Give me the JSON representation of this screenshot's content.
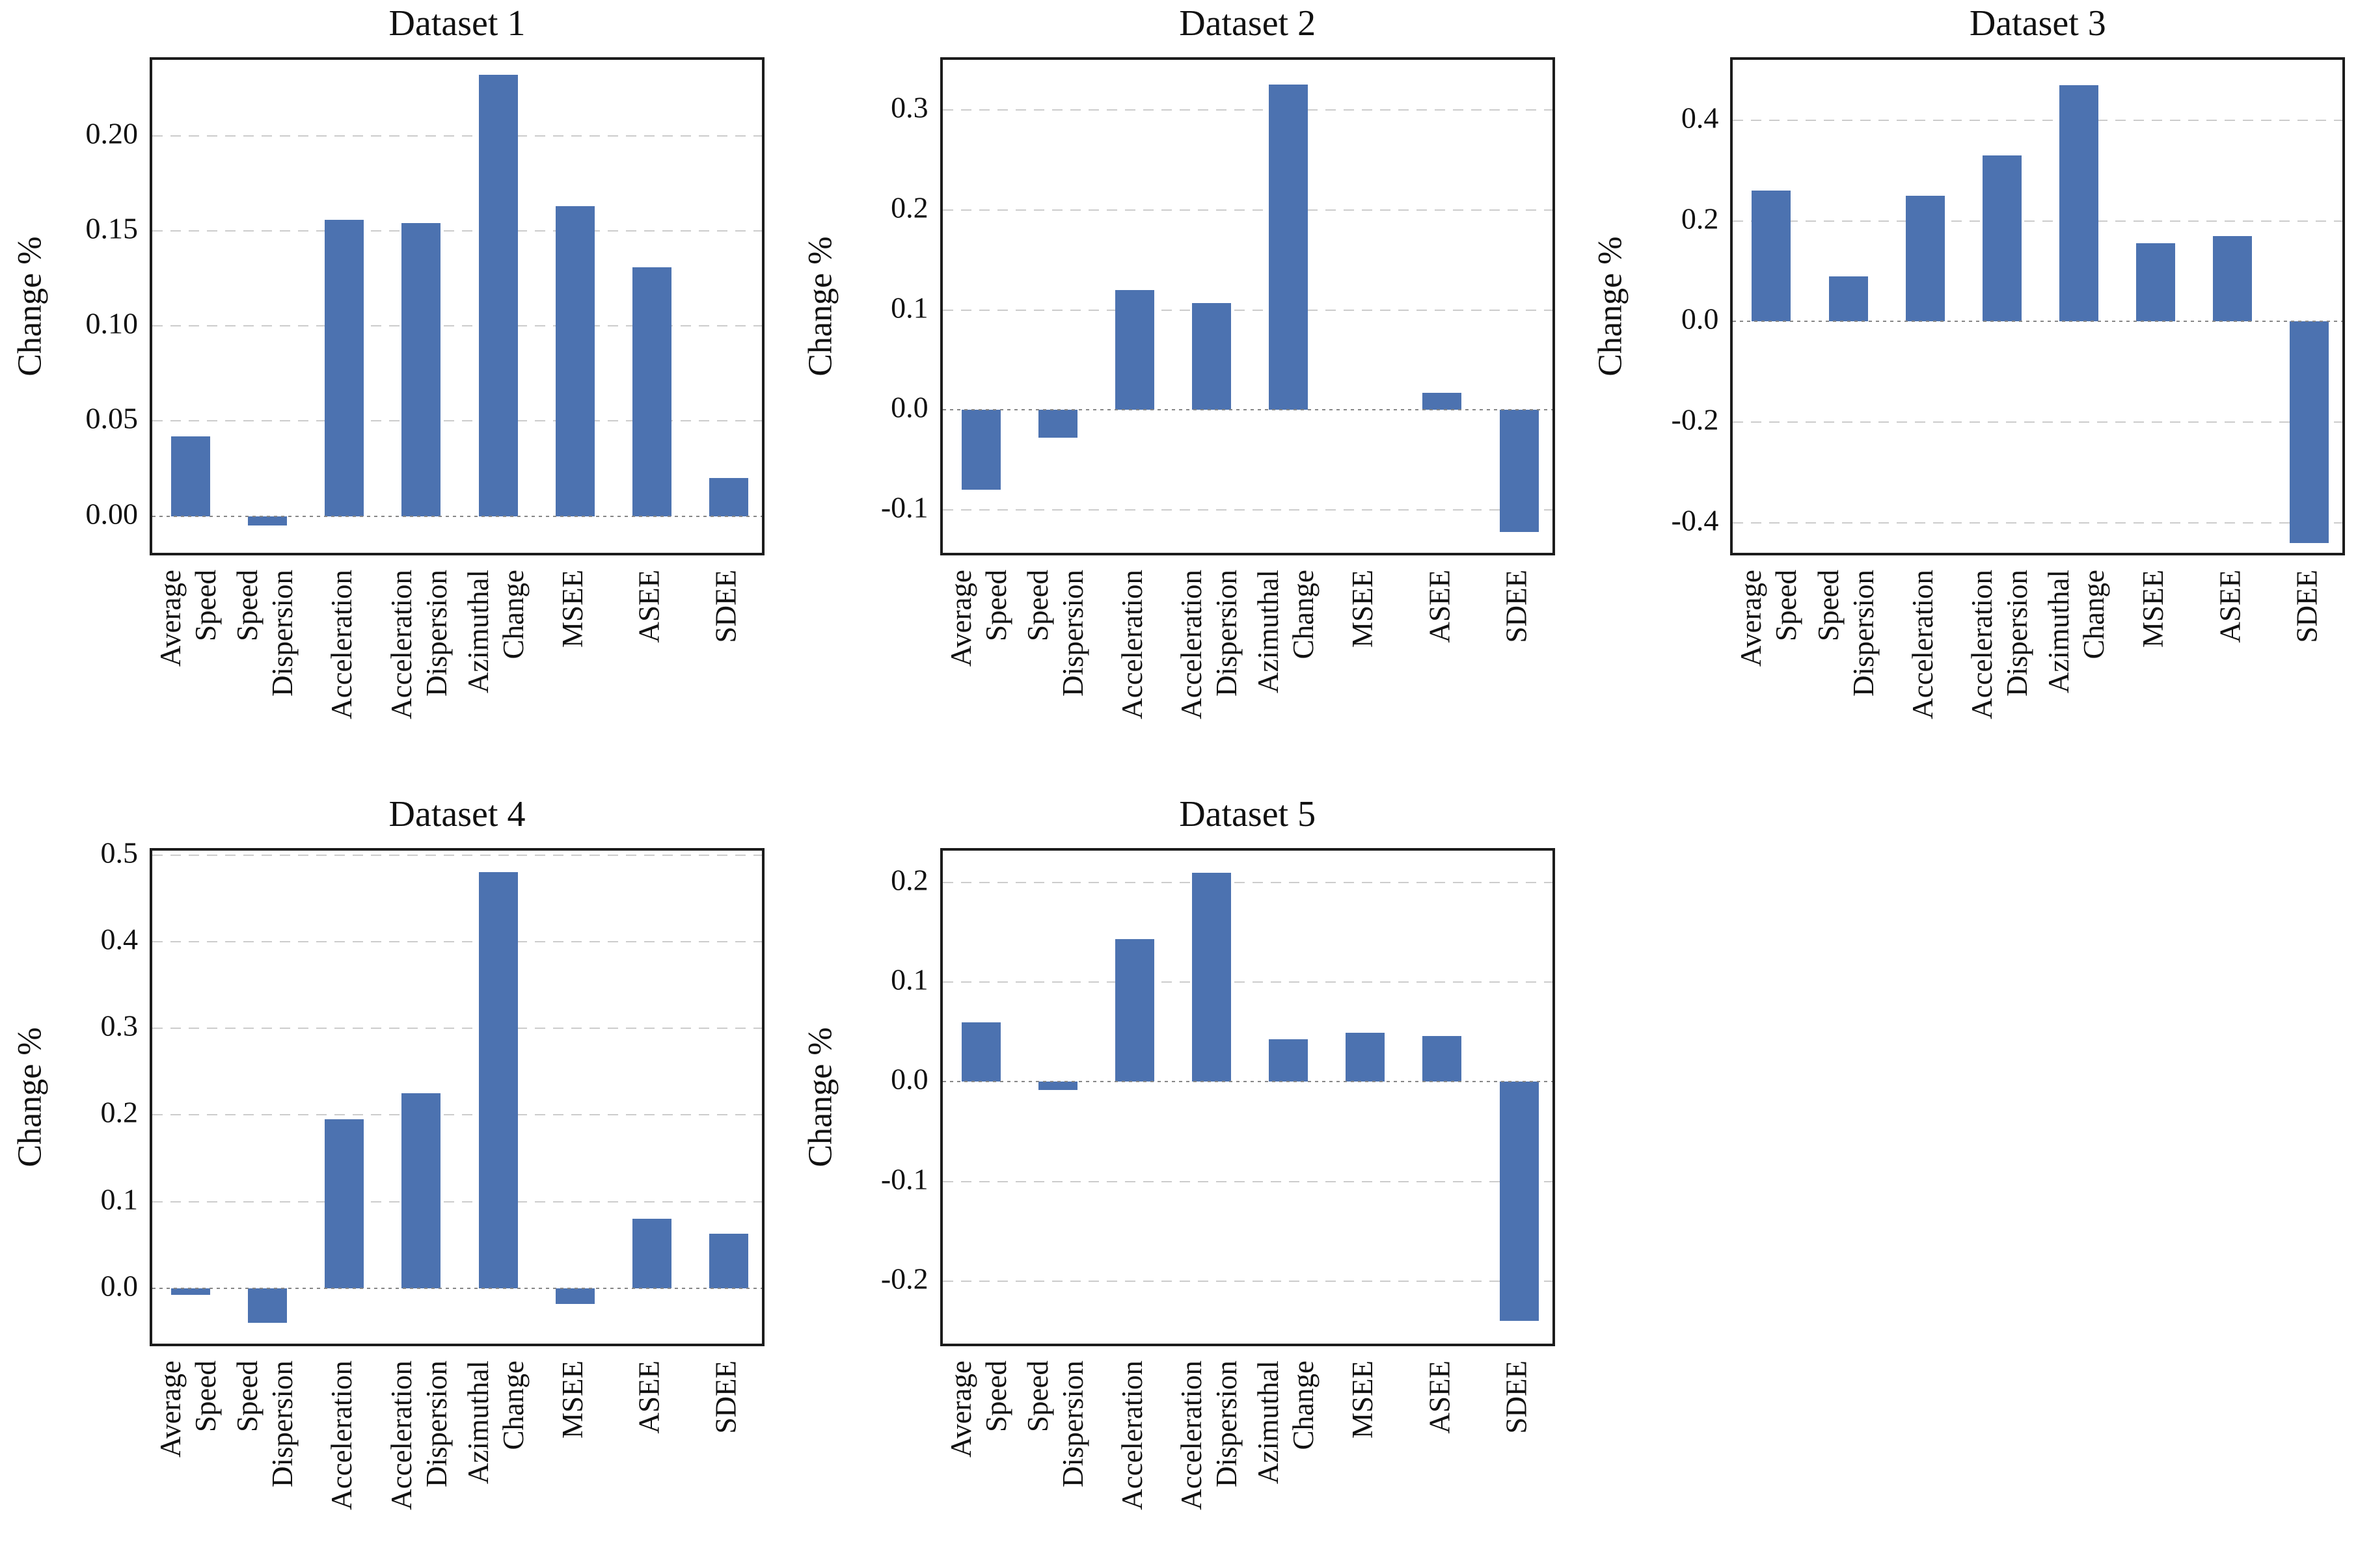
{
  "figure": {
    "description": "Grid of five bar chart subplots comparing metric changes across datasets",
    "background": "#ffffff"
  },
  "style": {
    "bar_color": "#4c72b0",
    "axes_border_color": "#1c1c1c",
    "grid_color": "#cccccc",
    "zero_line_color": "#878787",
    "text_color": "#111111"
  },
  "chart_data": [
    {
      "type": "bar",
      "title": "Dataset 1",
      "ylabel": "Change %",
      "xlabel": "",
      "categories": [
        "Average\nSpeed",
        "Speed\nDispersion",
        "Acceleration",
        "Acceleration\nDispersion",
        "Azimuthal\nChange",
        "MSEE",
        "ASEE",
        "SDEE"
      ],
      "values": [
        0.042,
        -0.005,
        0.156,
        0.154,
        0.232,
        0.163,
        0.131,
        0.02
      ],
      "yticks": [
        0.0,
        0.05,
        0.1,
        0.15,
        0.2
      ],
      "ytick_labels": [
        "0.00",
        "0.05",
        "0.10",
        "0.15",
        "0.20"
      ],
      "ylim": [
        -0.022,
        0.24
      ],
      "grid": "horizontal dashed",
      "zero_line": "dotted",
      "legend": "none",
      "grid_position": {
        "row": 0,
        "col": 0
      }
    },
    {
      "type": "bar",
      "title": "Dataset 2",
      "ylabel": "Change %",
      "xlabel": "",
      "categories": [
        "Average\nSpeed",
        "Speed\nDispersion",
        "Acceleration",
        "Acceleration\nDispersion",
        "Azimuthal\nChange",
        "MSEE",
        "ASEE",
        "SDEE"
      ],
      "values": [
        -0.08,
        -0.028,
        0.12,
        0.107,
        0.325,
        0.0,
        0.017,
        -0.122
      ],
      "yticks": [
        -0.1,
        0.0,
        0.1,
        0.2,
        0.3
      ],
      "ytick_labels": [
        "-0.1",
        "0.0",
        "0.1",
        "0.2",
        "0.3"
      ],
      "ylim": [
        -0.148,
        0.35
      ],
      "grid": "horizontal dashed",
      "zero_line": "dotted",
      "legend": "none",
      "grid_position": {
        "row": 0,
        "col": 1
      }
    },
    {
      "type": "bar",
      "title": "Dataset 3",
      "ylabel": "Change %",
      "xlabel": "",
      "categories": [
        "Average\nSpeed",
        "Speed\nDispersion",
        "Acceleration",
        "Acceleration\nDispersion",
        "Azimuthal\nChange",
        "MSEE",
        "ASEE",
        "SDEE"
      ],
      "values": [
        0.26,
        0.09,
        0.25,
        0.33,
        0.47,
        0.155,
        0.17,
        -0.44
      ],
      "yticks": [
        -0.4,
        -0.2,
        0.0,
        0.2,
        0.4
      ],
      "ytick_labels": [
        "-0.4",
        "-0.2",
        "0.0",
        "0.2",
        "0.4"
      ],
      "ylim": [
        -0.47,
        0.52
      ],
      "grid": "horizontal dashed",
      "zero_line": "dotted",
      "legend": "none",
      "grid_position": {
        "row": 0,
        "col": 2
      }
    },
    {
      "type": "bar",
      "title": "Dataset 4",
      "ylabel": "Change %",
      "xlabel": "",
      "categories": [
        "Average\nSpeed",
        "Speed\nDispersion",
        "Acceleration",
        "Acceleration\nDispersion",
        "Azimuthal\nChange",
        "MSEE",
        "ASEE",
        "SDEE"
      ],
      "values": [
        -0.008,
        -0.04,
        0.195,
        0.225,
        0.48,
        -0.018,
        0.08,
        0.063
      ],
      "yticks": [
        0.0,
        0.1,
        0.2,
        0.3,
        0.4,
        0.5
      ],
      "ytick_labels": [
        "0.0",
        "0.1",
        "0.2",
        "0.3",
        "0.4",
        "0.5"
      ],
      "ylim": [
        -0.07,
        0.505
      ],
      "grid": "horizontal dashed",
      "zero_line": "dotted",
      "legend": "none",
      "grid_position": {
        "row": 1,
        "col": 0
      }
    },
    {
      "type": "bar",
      "title": "Dataset 5",
      "ylabel": "Change %",
      "xlabel": "",
      "categories": [
        "Average\nSpeed",
        "Speed\nDispersion",
        "Acceleration",
        "Acceleration\nDispersion",
        "Azimuthal\nChange",
        "MSEE",
        "ASEE",
        "SDEE"
      ],
      "values": [
        0.06,
        -0.008,
        0.143,
        0.21,
        0.043,
        0.049,
        0.046,
        -0.24
      ],
      "yticks": [
        -0.2,
        -0.1,
        0.0,
        0.1,
        0.2
      ],
      "ytick_labels": [
        "-0.2",
        "-0.1",
        "0.0",
        "0.1",
        "0.2"
      ],
      "ylim": [
        -0.268,
        0.232
      ],
      "grid": "horizontal dashed",
      "zero_line": "dotted",
      "legend": "none",
      "grid_position": {
        "row": 1,
        "col": 1
      }
    }
  ]
}
